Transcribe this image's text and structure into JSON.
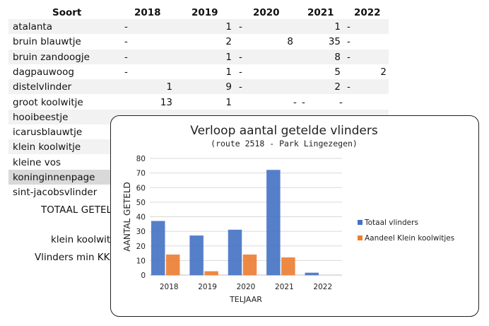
{
  "table": {
    "header": {
      "soort": "Soort",
      "years": [
        "2018",
        "2019",
        "2020",
        "2021",
        "2022"
      ]
    },
    "rows": [
      {
        "name": "atalanta",
        "c2018": "-",
        "c2019": "1",
        "c2020": "-",
        "c2021": "1",
        "c2022": "-"
      },
      {
        "name": "bruin blauwtje",
        "c2018": "-",
        "c2019": "2",
        "c2020": "8",
        "c2021": "35",
        "c2022": "-"
      },
      {
        "name": "bruin zandoogje",
        "c2018": "-",
        "c2019": "1",
        "c2020": "-",
        "c2021": "8",
        "c2022": "-"
      },
      {
        "name": "dagpauwoog",
        "c2018": "-",
        "c2019": "1",
        "c2020": "-",
        "c2021": "5",
        "c2022": "2"
      },
      {
        "name": "distelvlinder",
        "c2018": "1",
        "c2019": "9",
        "c2020": "-",
        "c2021": "2",
        "c2022": "-"
      },
      {
        "name": "groot koolwitje",
        "c2018": "13",
        "c2019": "1",
        "c2020": "-",
        "c2021": "-",
        "c2022": "-"
      },
      {
        "name": "hooibeestje",
        "c2018": "",
        "c2019": "",
        "c2020": "",
        "c2021": "",
        "c2022": ""
      },
      {
        "name": "icarusblauwtje"
      },
      {
        "name": "klein koolwitje"
      },
      {
        "name": "kleine vos"
      },
      {
        "name": "koningin­nenpage"
      },
      {
        "name": "sint-jacobsvlinder"
      }
    ],
    "summary": {
      "totaal": "TOTAAL GETEL",
      "klein": "klein koolwit",
      "vlinders_min": "Vlinders min KK"
    }
  },
  "chart_data": {
    "type": "bar",
    "title": "Verloop aantal getelde vlinders",
    "subtitle": "(route 2518  - Park Lingezegen)",
    "xlabel": "TELJAAR",
    "ylabel": "AANTAL GETELD",
    "categories": [
      "2018",
      "2019",
      "2020",
      "2021",
      "2022"
    ],
    "yticks": [
      "0",
      "10",
      "20",
      "30",
      "40",
      "50",
      "60",
      "70",
      "80"
    ],
    "ylim": [
      0,
      80
    ],
    "legend_position": "right",
    "grid": true,
    "series": [
      {
        "name": "Totaal vlinders",
        "color": "#4472c4",
        "values": [
          37,
          27,
          31,
          72,
          1.5
        ]
      },
      {
        "name": "Aandeel Klein koolwitjes",
        "color": "#ed7d31",
        "values": [
          14,
          2.5,
          14,
          12,
          0
        ]
      }
    ]
  }
}
